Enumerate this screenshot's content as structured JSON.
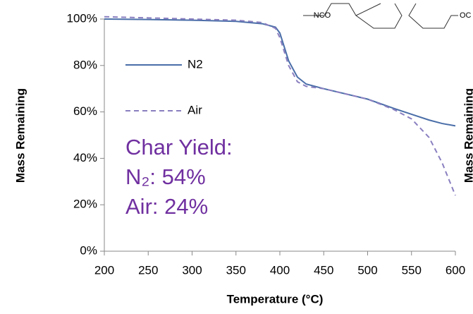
{
  "chart_data": {
    "type": "line",
    "xlabel": "Temperature (°C)",
    "ylabel": "Mass Remaining",
    "right_axis_label": "Mass Remaining",
    "structure_labels": [
      "NCO",
      "OC"
    ],
    "annotation": [
      "Char Yield:",
      "N₂: 54%",
      "Air:  24%"
    ],
    "x": [
      200,
      250,
      300,
      350,
      380,
      395,
      400,
      405,
      410,
      420,
      430,
      450,
      500,
      530,
      550,
      570,
      585,
      600
    ],
    "series": [
      {
        "name": "N2",
        "color": "#4a6ea8",
        "dash": false,
        "values": [
          100,
          99.8,
          99.5,
          99,
          98,
          96.5,
          94,
          88,
          82,
          75,
          72,
          70,
          65.5,
          61.5,
          59,
          56.5,
          55,
          54
        ]
      },
      {
        "name": "Air",
        "color": "#8a7fc0",
        "dash": true,
        "values": [
          101,
          100.5,
          100,
          99.5,
          98.5,
          96,
          92,
          86,
          80,
          73,
          71,
          70,
          65.5,
          61,
          57,
          49,
          38,
          24
        ]
      }
    ],
    "xlim": [
      200,
      600
    ],
    "xticks": [
      200,
      250,
      300,
      350,
      400,
      450,
      500,
      550,
      600
    ],
    "ylim": [
      0,
      100
    ],
    "yticks": [
      {
        "value": 0,
        "label": "0%"
      },
      {
        "value": 20,
        "label": "20%"
      },
      {
        "value": 40,
        "label": "40%"
      },
      {
        "value": 60,
        "label": "60%"
      },
      {
        "value": 80,
        "label": "80%"
      },
      {
        "value": 100,
        "label": "100%"
      }
    ],
    "grid": false,
    "legend": "upper left"
  }
}
